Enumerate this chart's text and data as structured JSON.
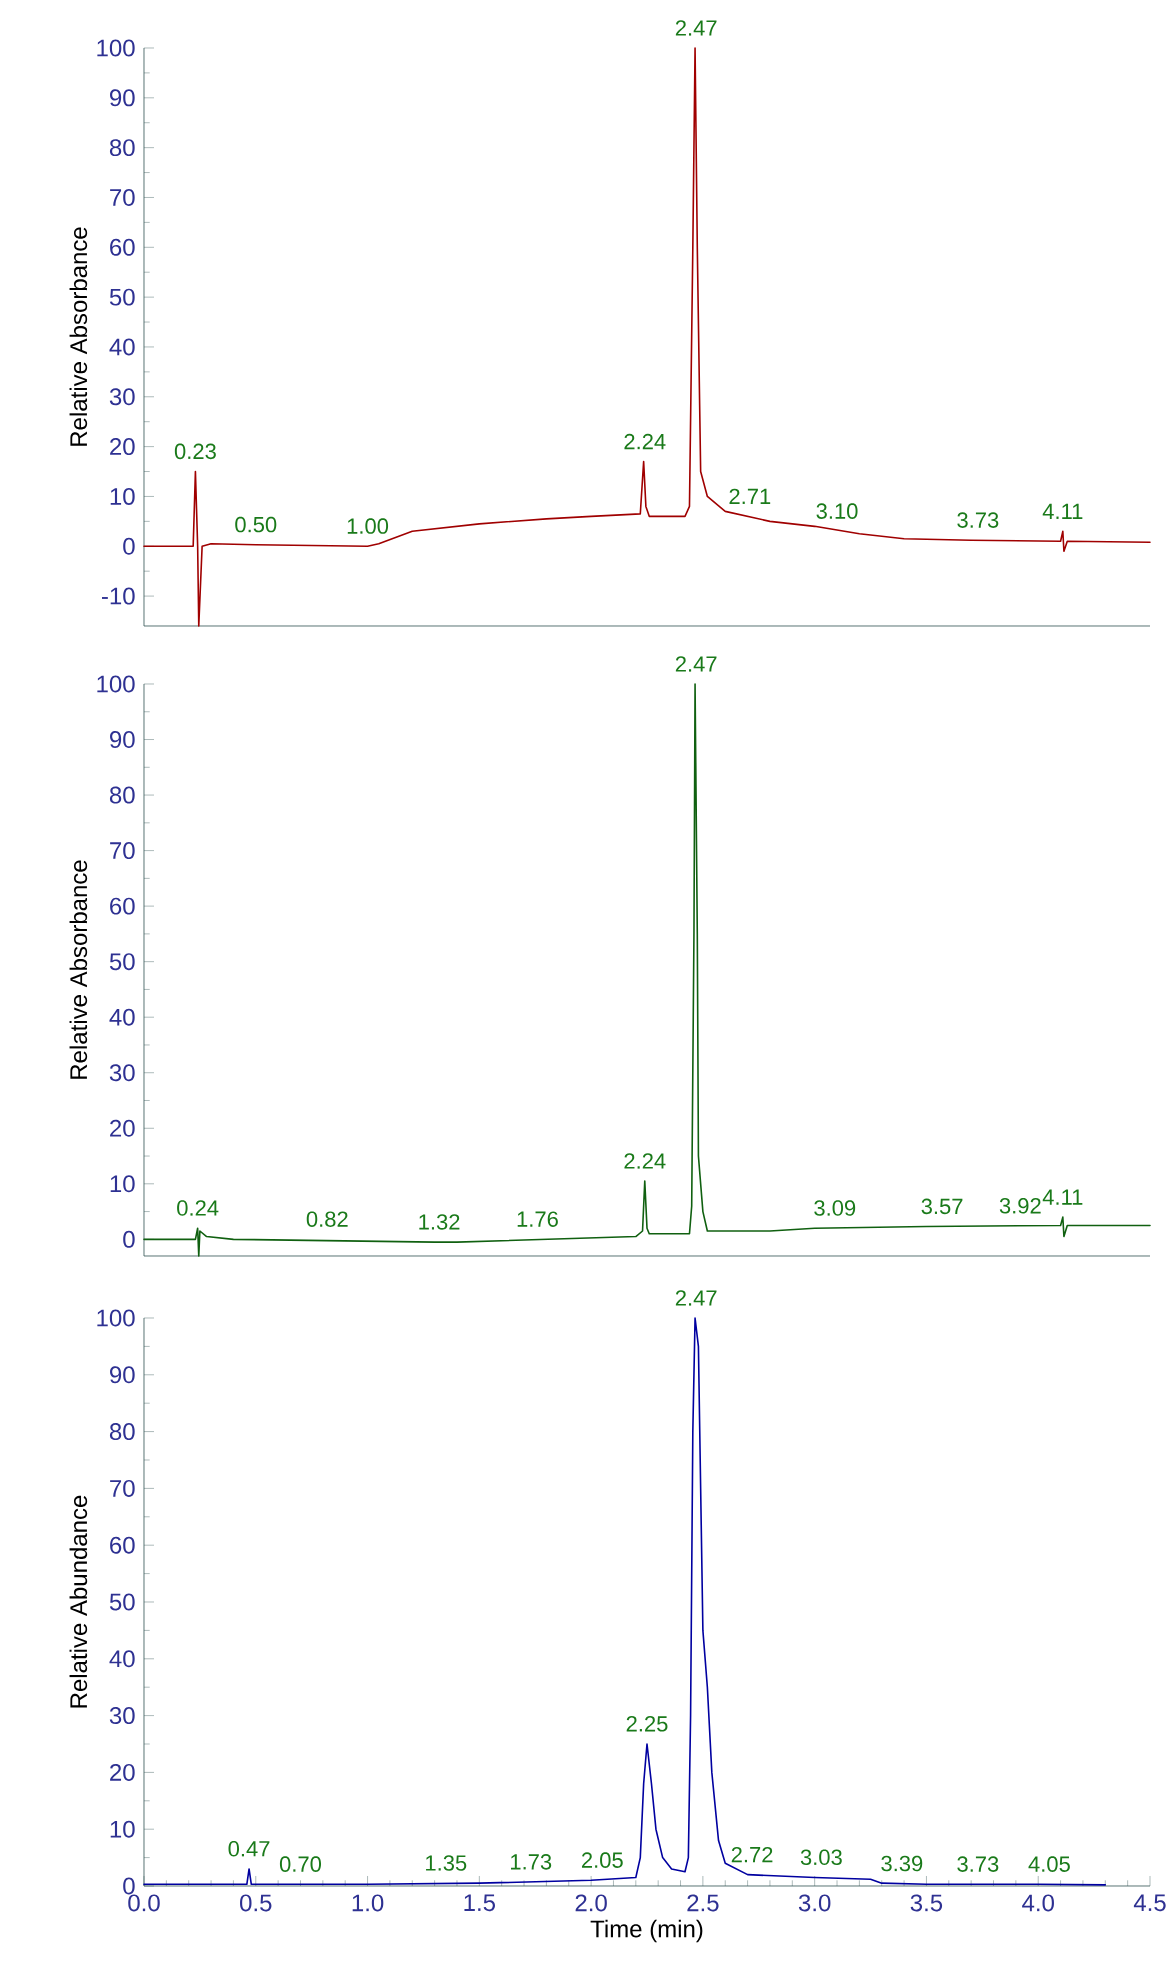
{
  "chart_data": [
    {
      "type": "line",
      "ylabel": "Relative Absorbance",
      "xlim": [
        0,
        4.5
      ],
      "ylim": [
        -16,
        100
      ],
      "tick_labels": "y",
      "yticks": [
        -10,
        0,
        10,
        20,
        30,
        40,
        50,
        60,
        70,
        80,
        90,
        100
      ],
      "series": [
        {
          "color": "#a00000",
          "x": [
            0,
            0.2,
            0.22,
            0.23,
            0.24,
            0.245,
            0.26,
            0.3,
            0.5,
            1.0,
            1.05,
            1.2,
            1.5,
            1.8,
            2.0,
            2.22,
            2.235,
            2.245,
            2.26,
            2.42,
            2.44,
            2.455,
            2.465,
            2.475,
            2.49,
            2.52,
            2.6,
            2.8,
            3.0,
            3.2,
            3.4,
            3.7,
            4.1,
            4.11,
            4.115,
            4.13,
            4.5
          ],
          "values": [
            0,
            0,
            0,
            15,
            0,
            -16,
            0,
            0.5,
            0.3,
            0,
            0.5,
            3,
            4.5,
            5.5,
            6,
            6.5,
            17,
            8,
            6,
            6,
            8,
            60,
            100,
            60,
            15,
            10,
            7,
            5,
            4,
            2.5,
            1.5,
            1.2,
            1,
            3,
            -1,
            1,
            0.8
          ]
        }
      ],
      "annotations": [
        {
          "text": "0.23",
          "x": 0.23,
          "y": 15
        },
        {
          "text": "0.50",
          "x": 0.5,
          "y": 0.3
        },
        {
          "text": "1.00",
          "x": 1.0,
          "y": 0
        },
        {
          "text": "2.24",
          "x": 2.24,
          "y": 17
        },
        {
          "text": "2.47",
          "x": 2.47,
          "y": 100
        },
        {
          "text": "2.71",
          "x": 2.71,
          "y": 6
        },
        {
          "text": "3.10",
          "x": 3.1,
          "y": 3
        },
        {
          "text": "3.73",
          "x": 3.73,
          "y": 1.2
        },
        {
          "text": "4.11",
          "x": 4.11,
          "y": 3
        }
      ]
    },
    {
      "type": "line",
      "ylabel": "Relative Absorbance",
      "xlim": [
        0,
        4.5
      ],
      "ylim": [
        -3,
        100
      ],
      "tick_labels": "y",
      "yticks": [
        0,
        10,
        20,
        30,
        40,
        50,
        60,
        70,
        80,
        90,
        100
      ],
      "series": [
        {
          "color": "#106010",
          "x": [
            0,
            0.23,
            0.24,
            0.245,
            0.25,
            0.28,
            0.4,
            1.3,
            1.4,
            2.2,
            2.23,
            2.24,
            2.25,
            2.26,
            2.44,
            2.45,
            2.46,
            2.465,
            2.475,
            2.48,
            2.5,
            2.52,
            2.8,
            3.0,
            3.5,
            4.1,
            4.11,
            4.115,
            4.13,
            4.5
          ],
          "values": [
            0,
            0,
            2,
            -3,
            1.5,
            0.5,
            0,
            -0.5,
            -0.5,
            0.5,
            1.5,
            10.5,
            2,
            1,
            1,
            6,
            55,
            100,
            55,
            15,
            5,
            1.5,
            1.5,
            2,
            2.3,
            2.5,
            4,
            0.5,
            2.5,
            2.5
          ]
        }
      ],
      "annotations": [
        {
          "text": "0.24",
          "x": 0.24,
          "y": 2
        },
        {
          "text": "0.82",
          "x": 0.82,
          "y": 0
        },
        {
          "text": "1.32",
          "x": 1.32,
          "y": -0.5
        },
        {
          "text": "1.76",
          "x": 1.76,
          "y": 0
        },
        {
          "text": "2.24",
          "x": 2.24,
          "y": 10.5
        },
        {
          "text": "2.47",
          "x": 2.47,
          "y": 100
        },
        {
          "text": "3.09",
          "x": 3.09,
          "y": 2
        },
        {
          "text": "3.57",
          "x": 3.57,
          "y": 2.3
        },
        {
          "text": "3.92",
          "x": 3.92,
          "y": 2.4
        },
        {
          "text": "4.11",
          "x": 4.11,
          "y": 4
        }
      ]
    },
    {
      "type": "line",
      "ylabel": "Relative Abundance",
      "xlabel": "Time (min)",
      "xlim": [
        0,
        4.5
      ],
      "ylim": [
        0,
        100
      ],
      "xticks": [
        {
          "value": 0,
          "label": "0.0"
        },
        0.5,
        {
          "value": 1,
          "label": "1.0"
        },
        1.5,
        {
          "value": 2,
          "label": "2.0"
        },
        2.5,
        {
          "value": 3,
          "label": "3.0"
        },
        3.5,
        {
          "value": 4,
          "label": "4.0"
        },
        4.5
      ],
      "yticks": [
        0,
        10,
        20,
        30,
        40,
        50,
        60,
        70,
        80,
        90,
        100
      ],
      "series": [
        {
          "color": "#0000a0",
          "x": [
            0,
            0.46,
            0.47,
            0.48,
            1.0,
            1.5,
            2.0,
            2.2,
            2.22,
            2.235,
            2.25,
            2.27,
            2.29,
            2.32,
            2.36,
            2.42,
            2.435,
            2.445,
            2.455,
            2.465,
            2.48,
            2.49,
            2.5,
            2.52,
            2.54,
            2.57,
            2.6,
            2.7,
            3.0,
            3.25,
            3.3,
            3.5,
            4.0,
            4.3
          ],
          "values": [
            0.3,
            0.3,
            3,
            0.3,
            0.3,
            0.5,
            1,
            1.5,
            5,
            18,
            25,
            18,
            10,
            5,
            3,
            2.5,
            5,
            30,
            80,
            100,
            95,
            70,
            45,
            35,
            20,
            8,
            4,
            2,
            1.5,
            1.2,
            0.5,
            0.3,
            0.3,
            0.2
          ]
        }
      ],
      "annotations": [
        {
          "text": "0.47",
          "x": 0.47,
          "y": 3
        },
        {
          "text": "0.70",
          "x": 0.7,
          "y": 0.3
        },
        {
          "text": "1.35",
          "x": 1.35,
          "y": 0.5
        },
        {
          "text": "1.73",
          "x": 1.73,
          "y": 0.7
        },
        {
          "text": "2.05",
          "x": 2.05,
          "y": 1
        },
        {
          "text": "2.25",
          "x": 2.25,
          "y": 25
        },
        {
          "text": "2.47",
          "x": 2.47,
          "y": 100
        },
        {
          "text": "2.72",
          "x": 2.72,
          "y": 2
        },
        {
          "text": "3.03",
          "x": 3.03,
          "y": 1.5
        },
        {
          "text": "3.39",
          "x": 3.39,
          "y": 0.4
        },
        {
          "text": "3.73",
          "x": 3.73,
          "y": 0.3
        },
        {
          "text": "4.05",
          "x": 4.05,
          "y": 0.3
        }
      ]
    }
  ]
}
